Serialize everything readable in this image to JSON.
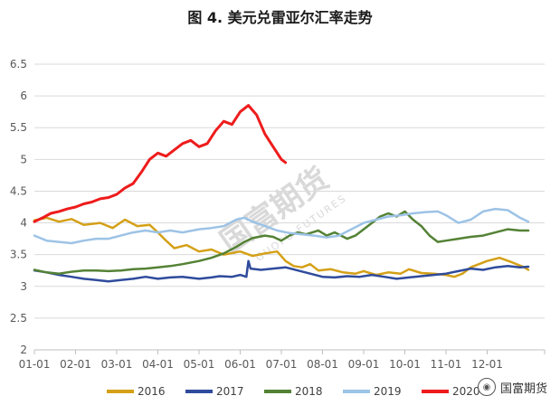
{
  "page": {
    "title": "图 4. 美元兑雷亚尔汇率走势",
    "watermark": "国富期货",
    "watermark_sub": "GUOFU FUTURES",
    "brand": "国富期货"
  },
  "chart_data": {
    "type": "line",
    "title": "图 4. 美元兑雷亚尔汇率走势",
    "xlabel": "",
    "ylabel": "",
    "ylim": [
      2,
      6.5
    ],
    "yticks": [
      "2",
      "2.5",
      "3",
      "3.5",
      "4",
      "4.5",
      "5",
      "5.5",
      "6",
      "6.5"
    ],
    "xticks": [
      "01-01",
      "02-01",
      "03-01",
      "04-01",
      "05-01",
      "06-01",
      "07-01",
      "08-01",
      "09-01",
      "10-01",
      "11-01",
      "12-01"
    ],
    "grid": "horizontal",
    "legend": "bottom",
    "series": [
      {
        "name": "2016",
        "color": "#d4a017",
        "points": [
          [
            0,
            4.04
          ],
          [
            0.3,
            4.08
          ],
          [
            0.6,
            4.02
          ],
          [
            0.9,
            4.06
          ],
          [
            1.2,
            3.97
          ],
          [
            1.6,
            4.0
          ],
          [
            1.9,
            3.92
          ],
          [
            2.2,
            4.05
          ],
          [
            2.5,
            3.95
          ],
          [
            2.8,
            3.97
          ],
          [
            3.0,
            3.85
          ],
          [
            3.2,
            3.72
          ],
          [
            3.4,
            3.6
          ],
          [
            3.7,
            3.65
          ],
          [
            4.0,
            3.55
          ],
          [
            4.3,
            3.58
          ],
          [
            4.6,
            3.5
          ],
          [
            5.0,
            3.55
          ],
          [
            5.3,
            3.48
          ],
          [
            5.6,
            3.52
          ],
          [
            5.9,
            3.55
          ],
          [
            6.1,
            3.4
          ],
          [
            6.3,
            3.32
          ],
          [
            6.5,
            3.3
          ],
          [
            6.7,
            3.35
          ],
          [
            6.9,
            3.25
          ],
          [
            7.2,
            3.27
          ],
          [
            7.5,
            3.22
          ],
          [
            7.8,
            3.2
          ],
          [
            8.0,
            3.24
          ],
          [
            8.3,
            3.18
          ],
          [
            8.6,
            3.22
          ],
          [
            8.9,
            3.2
          ],
          [
            9.1,
            3.27
          ],
          [
            9.4,
            3.21
          ],
          [
            9.7,
            3.2
          ],
          [
            10.0,
            3.18
          ],
          [
            10.2,
            3.15
          ],
          [
            10.4,
            3.2
          ],
          [
            10.6,
            3.3
          ],
          [
            10.8,
            3.35
          ],
          [
            11.0,
            3.4
          ],
          [
            11.3,
            3.45
          ],
          [
            11.6,
            3.38
          ],
          [
            11.9,
            3.3
          ],
          [
            12.0,
            3.26
          ]
        ]
      },
      {
        "name": "2017",
        "color": "#2f4b9c",
        "points": [
          [
            0,
            3.25
          ],
          [
            0.3,
            3.22
          ],
          [
            0.6,
            3.18
          ],
          [
            0.9,
            3.15
          ],
          [
            1.2,
            3.12
          ],
          [
            1.5,
            3.1
          ],
          [
            1.8,
            3.08
          ],
          [
            2.1,
            3.1
          ],
          [
            2.4,
            3.12
          ],
          [
            2.7,
            3.15
          ],
          [
            3.0,
            3.12
          ],
          [
            3.3,
            3.14
          ],
          [
            3.6,
            3.15
          ],
          [
            4.0,
            3.12
          ],
          [
            4.3,
            3.14
          ],
          [
            4.5,
            3.16
          ],
          [
            4.8,
            3.15
          ],
          [
            5.0,
            3.18
          ],
          [
            5.15,
            3.15
          ],
          [
            5.2,
            3.4
          ],
          [
            5.25,
            3.28
          ],
          [
            5.5,
            3.26
          ],
          [
            5.8,
            3.28
          ],
          [
            6.1,
            3.3
          ],
          [
            6.4,
            3.25
          ],
          [
            6.7,
            3.2
          ],
          [
            7.0,
            3.15
          ],
          [
            7.3,
            3.14
          ],
          [
            7.6,
            3.16
          ],
          [
            7.9,
            3.15
          ],
          [
            8.2,
            3.18
          ],
          [
            8.5,
            3.15
          ],
          [
            8.8,
            3.12
          ],
          [
            9.1,
            3.14
          ],
          [
            9.4,
            3.16
          ],
          [
            9.7,
            3.18
          ],
          [
            10.0,
            3.2
          ],
          [
            10.3,
            3.24
          ],
          [
            10.6,
            3.28
          ],
          [
            10.9,
            3.26
          ],
          [
            11.2,
            3.3
          ],
          [
            11.5,
            3.32
          ],
          [
            11.8,
            3.3
          ],
          [
            12.0,
            3.31
          ]
        ]
      },
      {
        "name": "2018",
        "color": "#548235",
        "points": [
          [
            0,
            3.26
          ],
          [
            0.3,
            3.22
          ],
          [
            0.6,
            3.2
          ],
          [
            0.9,
            3.23
          ],
          [
            1.2,
            3.25
          ],
          [
            1.5,
            3.25
          ],
          [
            1.8,
            3.24
          ],
          [
            2.1,
            3.25
          ],
          [
            2.4,
            3.27
          ],
          [
            2.7,
            3.28
          ],
          [
            3.0,
            3.3
          ],
          [
            3.3,
            3.32
          ],
          [
            3.6,
            3.35
          ],
          [
            4.0,
            3.4
          ],
          [
            4.3,
            3.45
          ],
          [
            4.6,
            3.52
          ],
          [
            4.9,
            3.62
          ],
          [
            5.1,
            3.7
          ],
          [
            5.3,
            3.76
          ],
          [
            5.6,
            3.8
          ],
          [
            5.8,
            3.78
          ],
          [
            6.0,
            3.72
          ],
          [
            6.2,
            3.8
          ],
          [
            6.4,
            3.85
          ],
          [
            6.6,
            3.82
          ],
          [
            6.9,
            3.88
          ],
          [
            7.1,
            3.8
          ],
          [
            7.3,
            3.85
          ],
          [
            7.6,
            3.75
          ],
          [
            7.8,
            3.8
          ],
          [
            8.0,
            3.9
          ],
          [
            8.2,
            4.0
          ],
          [
            8.4,
            4.1
          ],
          [
            8.6,
            4.15
          ],
          [
            8.8,
            4.1
          ],
          [
            9.0,
            4.18
          ],
          [
            9.2,
            4.05
          ],
          [
            9.4,
            3.95
          ],
          [
            9.6,
            3.8
          ],
          [
            9.8,
            3.7
          ],
          [
            10.0,
            3.72
          ],
          [
            10.3,
            3.75
          ],
          [
            10.6,
            3.78
          ],
          [
            10.9,
            3.8
          ],
          [
            11.2,
            3.85
          ],
          [
            11.5,
            3.9
          ],
          [
            11.8,
            3.88
          ],
          [
            12.0,
            3.88
          ]
        ]
      },
      {
        "name": "2019",
        "color": "#9dc3e6",
        "points": [
          [
            0,
            3.8
          ],
          [
            0.3,
            3.72
          ],
          [
            0.6,
            3.7
          ],
          [
            0.9,
            3.68
          ],
          [
            1.2,
            3.72
          ],
          [
            1.5,
            3.75
          ],
          [
            1.8,
            3.75
          ],
          [
            2.1,
            3.8
          ],
          [
            2.4,
            3.85
          ],
          [
            2.7,
            3.88
          ],
          [
            3.0,
            3.85
          ],
          [
            3.3,
            3.88
          ],
          [
            3.6,
            3.85
          ],
          [
            4.0,
            3.9
          ],
          [
            4.3,
            3.92
          ],
          [
            4.6,
            3.95
          ],
          [
            4.9,
            4.05
          ],
          [
            5.1,
            4.08
          ],
          [
            5.3,
            4.02
          ],
          [
            5.6,
            3.95
          ],
          [
            5.9,
            3.88
          ],
          [
            6.2,
            3.84
          ],
          [
            6.5,
            3.82
          ],
          [
            6.8,
            3.8
          ],
          [
            7.1,
            3.77
          ],
          [
            7.4,
            3.8
          ],
          [
            7.7,
            3.9
          ],
          [
            8.0,
            4.0
          ],
          [
            8.3,
            4.05
          ],
          [
            8.6,
            4.1
          ],
          [
            8.9,
            4.12
          ],
          [
            9.2,
            4.15
          ],
          [
            9.5,
            4.17
          ],
          [
            9.8,
            4.18
          ],
          [
            10.0,
            4.12
          ],
          [
            10.3,
            4.0
          ],
          [
            10.6,
            4.05
          ],
          [
            10.9,
            4.18
          ],
          [
            11.2,
            4.22
          ],
          [
            11.5,
            4.2
          ],
          [
            11.8,
            4.08
          ],
          [
            12.0,
            4.02
          ]
        ]
      },
      {
        "name": "2020",
        "color": "#ee1c1c",
        "points": [
          [
            0,
            4.02
          ],
          [
            0.2,
            4.08
          ],
          [
            0.4,
            4.15
          ],
          [
            0.6,
            4.18
          ],
          [
            0.8,
            4.22
          ],
          [
            1.0,
            4.25
          ],
          [
            1.2,
            4.3
          ],
          [
            1.4,
            4.33
          ],
          [
            1.6,
            4.38
          ],
          [
            1.8,
            4.4
          ],
          [
            2.0,
            4.45
          ],
          [
            2.2,
            4.55
          ],
          [
            2.4,
            4.62
          ],
          [
            2.6,
            4.8
          ],
          [
            2.8,
            5.0
          ],
          [
            3.0,
            5.1
          ],
          [
            3.2,
            5.05
          ],
          [
            3.4,
            5.15
          ],
          [
            3.6,
            5.25
          ],
          [
            3.8,
            5.3
          ],
          [
            4.0,
            5.2
          ],
          [
            4.2,
            5.25
          ],
          [
            4.4,
            5.45
          ],
          [
            4.6,
            5.6
          ],
          [
            4.8,
            5.55
          ],
          [
            5.0,
            5.75
          ],
          [
            5.2,
            5.85
          ],
          [
            5.4,
            5.7
          ],
          [
            5.6,
            5.4
          ],
          [
            5.8,
            5.2
          ],
          [
            6.0,
            5.0
          ],
          [
            6.1,
            4.95
          ]
        ]
      }
    ]
  }
}
